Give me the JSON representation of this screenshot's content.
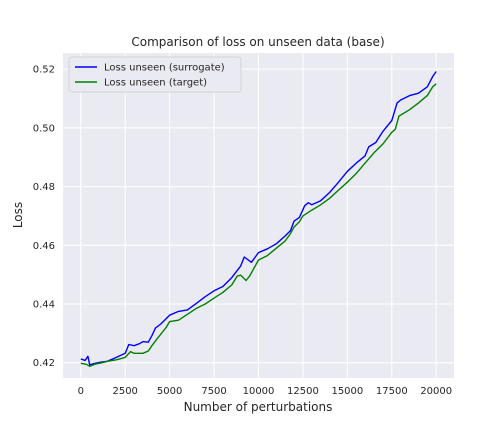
{
  "chart_data": {
    "type": "line",
    "title": "Comparison of loss on unseen data (base)",
    "xlabel": "Number of perturbations",
    "ylabel": "Loss",
    "xlim": [
      -1000,
      21000
    ],
    "ylim": [
      0.4148,
      0.5255
    ],
    "x_ticks": [
      0,
      2500,
      5000,
      7500,
      10000,
      12500,
      15000,
      17500,
      20000
    ],
    "x_tick_labels": [
      "0",
      "2500",
      "5000",
      "7500",
      "10000",
      "12500",
      "15000",
      "17500",
      "20000"
    ],
    "y_ticks": [
      0.42,
      0.44,
      0.46,
      0.48,
      0.5,
      0.52
    ],
    "y_tick_labels": [
      "0.42",
      "0.44",
      "0.46",
      "0.48",
      "0.50",
      "0.52"
    ],
    "grid": true,
    "legend_position": "top-left",
    "background": "#eaeaf2",
    "series": [
      {
        "name": "Loss unseen (surrogate)",
        "color": "#0000ff",
        "x": [
          0,
          250,
          400,
          500,
          800,
          1200,
          1500,
          2000,
          2500,
          2700,
          3000,
          3300,
          3500,
          3800,
          4000,
          4200,
          4500,
          5000,
          5500,
          6000,
          6500,
          7000,
          7500,
          8000,
          8500,
          9000,
          9200,
          9600,
          10000,
          10500,
          11000,
          11500,
          11800,
          12000,
          12300,
          12600,
          12800,
          13000,
          13500,
          14000,
          14500,
          15000,
          15500,
          16000,
          16200,
          16600,
          17000,
          17500,
          17800,
          18000,
          18500,
          19000,
          19500,
          19800,
          20000
        ],
        "values": [
          0.4213,
          0.4208,
          0.4222,
          0.4193,
          0.4198,
          0.4203,
          0.4205,
          0.4218,
          0.4232,
          0.4262,
          0.4258,
          0.4265,
          0.4272,
          0.427,
          0.4292,
          0.4318,
          0.4332,
          0.4362,
          0.4375,
          0.438,
          0.4402,
          0.4425,
          0.4445,
          0.446,
          0.449,
          0.453,
          0.456,
          0.4542,
          0.4575,
          0.4588,
          0.4605,
          0.4632,
          0.465,
          0.4682,
          0.4695,
          0.4735,
          0.4745,
          0.4738,
          0.4752,
          0.478,
          0.4815,
          0.4852,
          0.488,
          0.4905,
          0.4935,
          0.495,
          0.4988,
          0.5025,
          0.5085,
          0.5095,
          0.511,
          0.5118,
          0.514,
          0.5175,
          0.5192
        ]
      },
      {
        "name": "Loss unseen (target)",
        "color": "#008000",
        "x": [
          0,
          300,
          500,
          800,
          1200,
          1500,
          2000,
          2500,
          2800,
          3000,
          3500,
          3800,
          4000,
          4300,
          4800,
          5000,
          5500,
          6000,
          6500,
          7000,
          7500,
          8000,
          8500,
          8800,
          9000,
          9300,
          9500,
          10000,
          10500,
          11000,
          11500,
          11800,
          12000,
          12300,
          12500,
          13000,
          13500,
          14000,
          14500,
          15000,
          15500,
          16000,
          16500,
          17000,
          17500,
          17700,
          17900,
          18500,
          19000,
          19500,
          19800,
          20000
        ],
        "values": [
          0.4198,
          0.4195,
          0.4188,
          0.4195,
          0.42,
          0.4205,
          0.421,
          0.4218,
          0.4238,
          0.4232,
          0.4232,
          0.424,
          0.4258,
          0.4282,
          0.432,
          0.434,
          0.4345,
          0.4365,
          0.4385,
          0.44,
          0.442,
          0.444,
          0.4465,
          0.4495,
          0.4498,
          0.448,
          0.4495,
          0.455,
          0.4565,
          0.459,
          0.4615,
          0.464,
          0.4662,
          0.468,
          0.47,
          0.472,
          0.4738,
          0.476,
          0.4788,
          0.4815,
          0.4845,
          0.488,
          0.4915,
          0.4945,
          0.4985,
          0.4995,
          0.504,
          0.5062,
          0.5085,
          0.511,
          0.514,
          0.515
        ]
      }
    ]
  }
}
